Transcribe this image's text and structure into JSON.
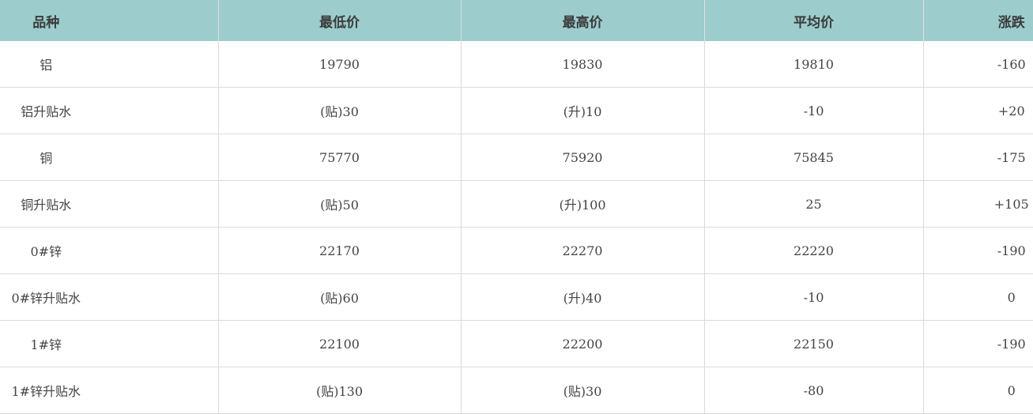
{
  "headers": [
    "品种",
    "最低价",
    "最高价",
    "平均价",
    "涨跌"
  ],
  "rows": [
    [
      "铝",
      "19790",
      "19830",
      "19810",
      "-160"
    ],
    [
      "铝升贴水",
      "(贴)30",
      "(升)10",
      "-10",
      "+20"
    ],
    [
      "铜",
      "75770",
      "75920",
      "75845",
      "-175"
    ],
    [
      "铜升贴水",
      "(贴)50",
      "(升)100",
      "25",
      "+105"
    ],
    [
      "0#锌",
      "22170",
      "22270",
      "22220",
      "-190"
    ],
    [
      "0#锌升贴水",
      "(贴)60",
      "(升)40",
      "-10",
      "0"
    ],
    [
      "1#锌",
      "22100",
      "22200",
      "22150",
      "-190"
    ],
    [
      "1#锌升贴水",
      "(贴)130",
      "(贴)30",
      "-80",
      "0"
    ]
  ],
  "colors": {
    "header_bg": "#9ccccc"
  }
}
